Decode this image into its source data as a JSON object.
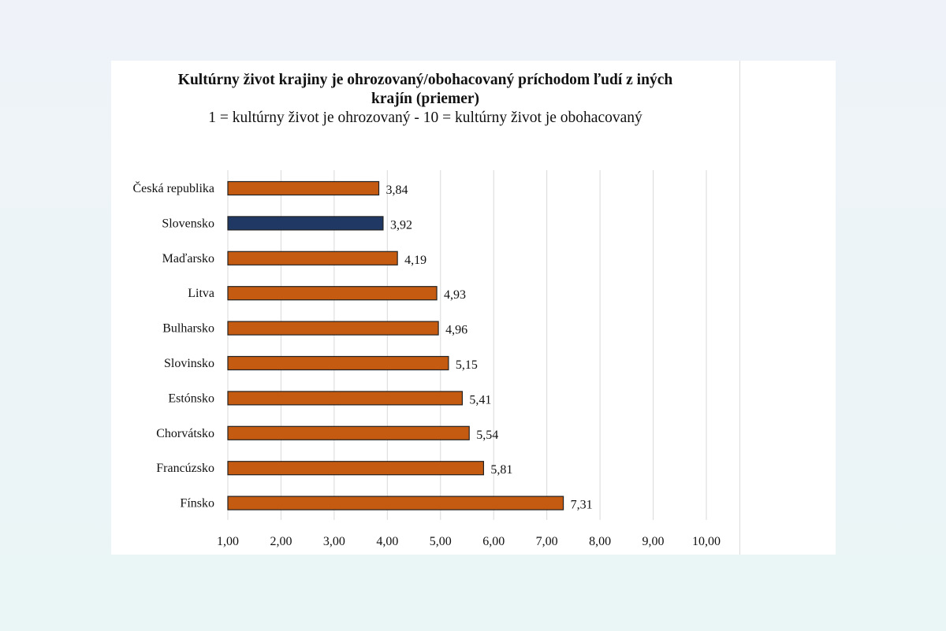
{
  "chart_data": {
    "type": "bar",
    "orientation": "horizontal",
    "title": "Kultúrny život krajiny je ohrozovaný/obohacovaný príchodom ľudí z iných krajín (priemer)",
    "subtitle": "1 = kultúrny život je ohrozovaný - 10 = kultúrny život je obohacovaný",
    "categories": [
      "Česká republika",
      "Slovensko",
      "Maďarsko",
      "Litva",
      "Bulharsko",
      "Slovinsko",
      "Estónsko",
      "Chorvátsko",
      "Francúzsko",
      "Fínsko"
    ],
    "values": [
      3.84,
      3.92,
      4.19,
      4.93,
      4.96,
      5.15,
      5.41,
      5.54,
      5.81,
      7.31
    ],
    "value_labels": [
      "3,84",
      "3,92",
      "4,19",
      "4,93",
      "4,96",
      "5,15",
      "5,41",
      "5,54",
      "5,81",
      "7,31"
    ],
    "highlight": "Slovensko",
    "xlim": [
      1,
      10
    ],
    "xticks": [
      "1,00",
      "2,00",
      "3,00",
      "4,00",
      "5,00",
      "6,00",
      "7,00",
      "8,00",
      "9,00",
      "10,00"
    ],
    "grid": true,
    "colors": {
      "default": "#c55a11",
      "highlight": "#1f3864",
      "outline": "#222222",
      "grid": "#d9d9d9"
    }
  }
}
